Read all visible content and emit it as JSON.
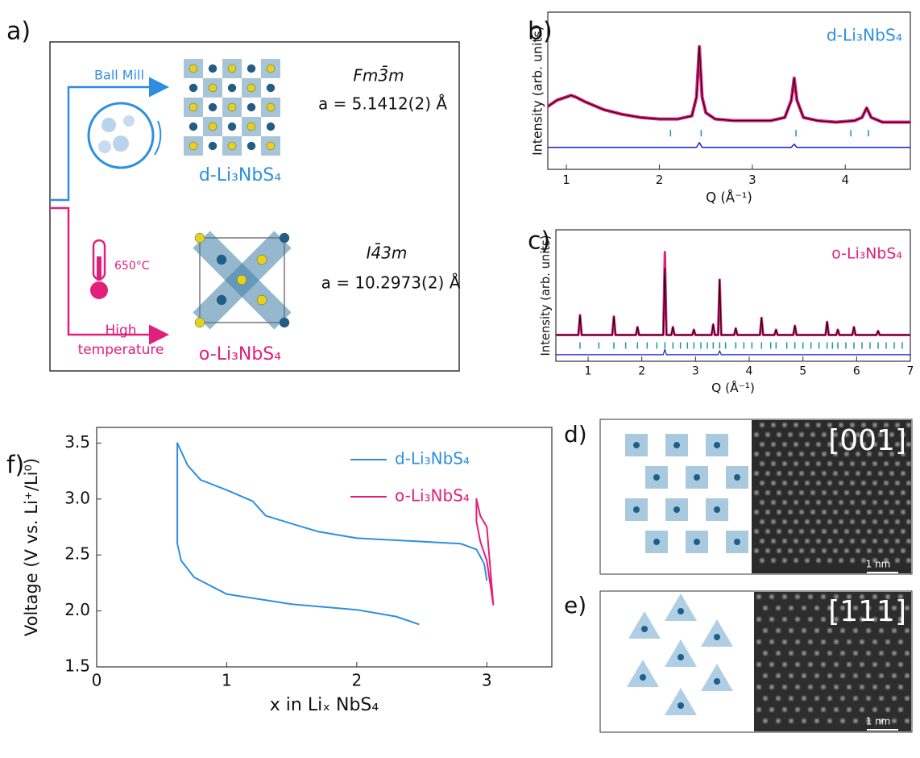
{
  "diagram": {
    "panel_label": "a)",
    "route_top": "Ball Mill",
    "temperature": "650°C",
    "route_bottom": [
      "High",
      "temperature"
    ],
    "phase_top": {
      "space_group": "Fm3̄m",
      "lattice": "a = 5.1412(2) Å",
      "name": "d-Li₃NbS₄"
    },
    "phase_bottom": {
      "space_group": "I4̄3m",
      "lattice": "a = 10.2973(2) Å",
      "name": "o-Li₃NbS₄"
    }
  },
  "chart_data": [
    {
      "type": "line",
      "panel_label": "b)",
      "annotation": "d-Li₃NbS₄",
      "annotation_color": "#2e8fe0",
      "xlabel": "Q (Å⁻¹)",
      "ylabel": "Intensity (arb. units)",
      "xlim": [
        0.8,
        4.7
      ],
      "xticks": [
        1,
        2,
        3,
        4
      ],
      "ylim": [
        0,
        10
      ],
      "x": [
        0.8,
        0.9,
        1.0,
        1.05,
        1.1,
        1.2,
        1.4,
        1.6,
        1.8,
        2.0,
        2.2,
        2.35,
        2.4,
        2.43,
        2.46,
        2.5,
        2.6,
        2.8,
        3.0,
        3.2,
        3.35,
        3.42,
        3.45,
        3.48,
        3.55,
        3.7,
        3.9,
        4.1,
        4.18,
        4.23,
        4.28,
        4.4,
        4.6,
        4.7
      ],
      "series": [
        {
          "color": "#e0207a",
          "width": 4,
          "values": [
            4.0,
            4.4,
            4.6,
            4.7,
            4.6,
            4.3,
            3.8,
            3.5,
            3.3,
            3.2,
            3.2,
            3.4,
            4.6,
            7.8,
            4.6,
            3.6,
            3.2,
            3.1,
            3.1,
            3.1,
            3.3,
            4.4,
            5.8,
            4.4,
            3.3,
            3.1,
            3.0,
            3.1,
            3.3,
            3.9,
            3.3,
            3.0,
            3.0,
            3.0
          ]
        },
        {
          "color": "#000000",
          "width": 1,
          "values": [
            4.0,
            4.4,
            4.6,
            4.7,
            4.6,
            4.3,
            3.8,
            3.5,
            3.3,
            3.2,
            3.2,
            3.4,
            4.6,
            7.8,
            4.6,
            3.6,
            3.2,
            3.1,
            3.1,
            3.1,
            3.3,
            4.4,
            5.8,
            4.4,
            3.3,
            3.1,
            3.0,
            3.1,
            3.3,
            3.9,
            3.3,
            3.0,
            3.0,
            3.0
          ]
        },
        {
          "color": "#1a1ae0",
          "width": 1.5,
          "values": [
            1.4,
            1.4,
            1.4,
            1.4,
            1.4,
            1.4,
            1.4,
            1.4,
            1.4,
            1.4,
            1.4,
            1.4,
            1.4,
            1.7,
            1.4,
            1.4,
            1.4,
            1.4,
            1.4,
            1.4,
            1.4,
            1.4,
            1.6,
            1.4,
            1.4,
            1.4,
            1.4,
            1.4,
            1.4,
            1.4,
            1.4,
            1.4,
            1.4,
            1.4
          ]
        }
      ],
      "reflections": {
        "color": "#1a9a8a",
        "y": 2.3,
        "x": [
          2.12,
          2.45,
          3.47,
          4.06,
          4.25
        ]
      }
    },
    {
      "type": "line",
      "panel_label": "c)",
      "annotation": "o-Li₃NbS₄",
      "annotation_color": "#e0207a",
      "xlabel": "Q (Å⁻¹)",
      "ylabel": "Intensity (arb. units)",
      "xlim": [
        0.4,
        7
      ],
      "xticks": [
        1,
        2,
        3,
        4,
        5,
        6,
        7
      ],
      "ylim": [
        0,
        10
      ],
      "x": [
        0.4,
        0.82,
        0.85,
        0.88,
        1.45,
        1.48,
        1.51,
        1.89,
        1.92,
        1.95,
        2.4,
        2.43,
        2.46,
        2.55,
        2.58,
        2.61,
        2.94,
        2.97,
        3.0,
        3.3,
        3.33,
        3.36,
        3.42,
        3.45,
        3.48,
        3.72,
        3.75,
        3.78,
        4.2,
        4.23,
        4.26,
        4.47,
        4.5,
        4.53,
        4.82,
        4.85,
        4.88,
        5.42,
        5.45,
        5.48,
        5.62,
        5.65,
        5.68,
        5.92,
        5.95,
        5.98,
        6.37,
        6.4,
        6.43,
        7.0
      ],
      "series": [
        {
          "color": "#e0207a",
          "width": 3,
          "values": [
            2.0,
            2.0,
            3.5,
            2.0,
            2.0,
            3.4,
            2.0,
            2.0,
            2.6,
            2.0,
            2.0,
            8.3,
            2.0,
            2.0,
            2.6,
            2.0,
            2.0,
            2.4,
            2.0,
            2.0,
            2.8,
            2.0,
            2.0,
            6.2,
            2.0,
            2.0,
            2.5,
            2.0,
            2.0,
            3.3,
            2.0,
            2.0,
            2.4,
            2.0,
            2.0,
            2.7,
            2.0,
            2.0,
            3.0,
            2.0,
            2.0,
            2.4,
            2.0,
            2.0,
            2.6,
            2.0,
            2.0,
            2.3,
            2.0,
            2.0
          ]
        },
        {
          "color": "#000000",
          "width": 1,
          "values": [
            2.0,
            2.0,
            3.5,
            2.0,
            2.0,
            3.4,
            2.0,
            2.0,
            2.6,
            2.0,
            2.0,
            7.1,
            2.0,
            2.0,
            2.6,
            2.0,
            2.0,
            2.4,
            2.0,
            2.0,
            2.8,
            2.0,
            2.0,
            6.2,
            2.0,
            2.0,
            2.5,
            2.0,
            2.0,
            3.3,
            2.0,
            2.0,
            2.4,
            2.0,
            2.0,
            2.7,
            2.0,
            2.0,
            3.0,
            2.0,
            2.0,
            2.4,
            2.0,
            2.0,
            2.6,
            2.0,
            2.0,
            2.3,
            2.0,
            2.0
          ]
        },
        {
          "color": "#1a1ae0",
          "width": 1.2,
          "values": [
            0.5,
            0.5,
            0.5,
            0.5,
            0.5,
            0.5,
            0.5,
            0.5,
            0.5,
            0.5,
            0.5,
            0.9,
            0.5,
            0.5,
            0.5,
            0.5,
            0.5,
            0.5,
            0.5,
            0.5,
            0.5,
            0.5,
            0.5,
            0.8,
            0.5,
            0.5,
            0.5,
            0.5,
            0.5,
            0.5,
            0.5,
            0.5,
            0.5,
            0.5,
            0.5,
            0.5,
            0.5,
            0.5,
            0.5,
            0.5,
            0.5,
            0.5,
            0.5,
            0.5,
            0.5,
            0.5,
            0.5,
            0.5,
            0.5,
            0.5
          ]
        }
      ],
      "reflections": {
        "color": "#1a9a8a",
        "y": 1.2,
        "x": [
          0.85,
          1.2,
          1.48,
          1.7,
          1.92,
          2.1,
          2.28,
          2.43,
          2.58,
          2.72,
          2.85,
          2.97,
          3.1,
          3.22,
          3.33,
          3.45,
          3.56,
          3.75,
          3.9,
          4.05,
          4.23,
          4.4,
          4.5,
          4.7,
          4.85,
          5.0,
          5.15,
          5.3,
          5.45,
          5.55,
          5.65,
          5.8,
          5.95,
          6.1,
          6.25,
          6.4,
          6.55,
          6.7,
          6.85
        ]
      }
    },
    {
      "type": "line",
      "panel_label": "f)",
      "xlabel": "x in Liₓ NbS₄",
      "ylabel": "Voltage (V vs. Li⁺/Li⁰)",
      "xlim": [
        0,
        3.5
      ],
      "xticks": [
        0,
        1,
        2,
        3
      ],
      "ylim": [
        1.5,
        3.64
      ],
      "yticks": [
        1.5,
        {
          "value": 2,
          "label": "2.0"
        },
        2.5,
        {
          "value": 3,
          "label": "3.0"
        },
        3.5
      ],
      "legend": "upper right",
      "series": [
        {
          "name": "d-Li₃NbS₄",
          "color": "#2e8fe0",
          "width": 2,
          "x": [
            2.48,
            2.3,
            2.0,
            1.5,
            1.0,
            0.75,
            0.65,
            0.62,
            0.62,
            0.7,
            0.8,
            1.0,
            1.2,
            1.3,
            1.5,
            1.7,
            2.0,
            2.5,
            2.8,
            2.92,
            2.98,
            3.0
          ],
          "values": [
            1.88,
            1.95,
            2.01,
            2.06,
            2.15,
            2.3,
            2.45,
            2.6,
            3.5,
            3.3,
            3.17,
            3.08,
            2.98,
            2.85,
            2.78,
            2.71,
            2.65,
            2.62,
            2.6,
            2.55,
            2.42,
            2.27
          ]
        },
        {
          "name": "o-Li₃NbS₄",
          "color": "#e0207a",
          "width": 2,
          "x": [
            3.05,
            3.0,
            2.95,
            2.92,
            2.92,
            2.95,
            3.0,
            3.05
          ],
          "values": [
            2.05,
            2.45,
            2.62,
            2.8,
            3.0,
            2.85,
            2.75,
            2.05
          ]
        }
      ]
    }
  ],
  "images": [
    {
      "panel_label": "d)",
      "zone_axis": "[001]",
      "scale_bar": "1 nm"
    },
    {
      "panel_label": "e)",
      "zone_axis": "[111]",
      "scale_bar": "1 nm"
    }
  ]
}
